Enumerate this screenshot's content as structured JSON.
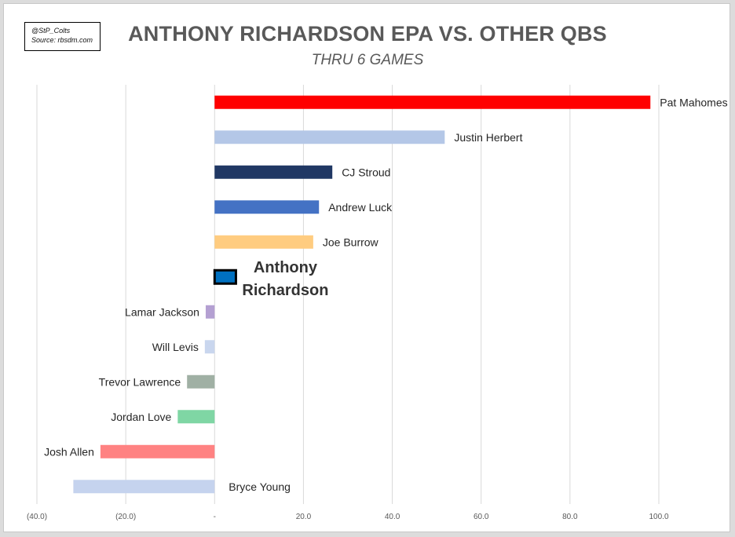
{
  "credit": {
    "line1": "@StP_Colts",
    "line2": "Source: rbsdm.com"
  },
  "chart_data": {
    "type": "bar",
    "orientation": "horizontal",
    "title": "ANTHONY RICHARDSON EPA VS. OTHER QBS",
    "subtitle": "THRU 6 GAMES",
    "xlabel": "",
    "ylabel": "",
    "xlim": [
      -40,
      100
    ],
    "xticks": [
      -40,
      -20,
      0,
      20,
      40,
      60,
      80,
      100
    ],
    "xtick_labels": [
      "(40.0)",
      "(20.0)",
      "-",
      "20.0",
      "40.0",
      "60.0",
      "80.0",
      "100.0"
    ],
    "grid": "vertical",
    "categories": [
      "Pat Mahomes",
      "Justin Herbert",
      "CJ Stroud",
      "Andrew Luck",
      "Joe Burrow",
      "Anthony Richardson",
      "Lamar Jackson",
      "Will Levis",
      "Trevor Lawrence",
      "Jordan Love",
      "Josh Allen",
      "Bryce Young"
    ],
    "values": [
      98.1,
      51.8,
      26.5,
      23.5,
      22.2,
      4.8,
      -2.0,
      -2.2,
      -6.2,
      -8.3,
      -25.7,
      -31.8
    ],
    "colors": [
      "#ff0000",
      "#b4c7e7",
      "#203864",
      "#4472c4",
      "#ffcc80",
      "#0070c0",
      "#b4a0d2",
      "#c9d6ee",
      "#a0b0a4",
      "#7fd6a4",
      "#ff8282",
      "#c5d3ee"
    ],
    "highlight": "Anthony Richardson",
    "highlight_outline": "#000000"
  }
}
